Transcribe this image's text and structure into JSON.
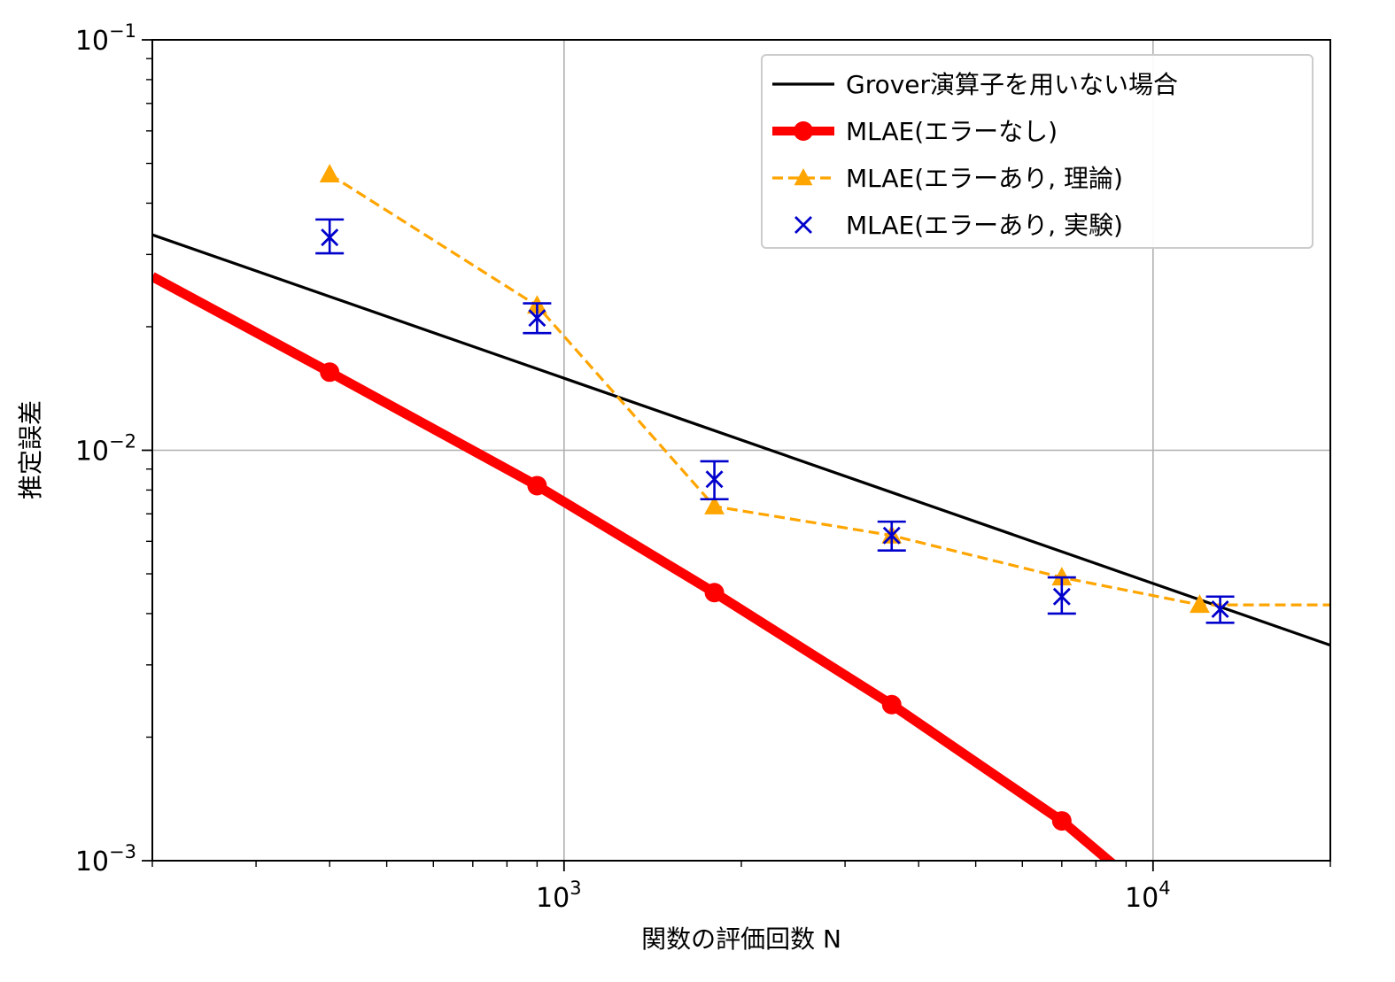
{
  "chart_data": {
    "type": "line",
    "xscale": "log",
    "yscale": "log",
    "xlim": [
      200,
      20000
    ],
    "ylim": [
      0.001,
      0.1
    ],
    "xlabel": "関数の評価回数 N",
    "ylabel": "推定誤差",
    "x_ticks": [
      {
        "value": 1000,
        "base": "10",
        "exp": "3"
      },
      {
        "value": 10000,
        "base": "10",
        "exp": "4"
      }
    ],
    "y_ticks": [
      {
        "value": 0.001,
        "base": "10",
        "exp": "−3"
      },
      {
        "value": 0.01,
        "base": "10",
        "exp": "−2"
      },
      {
        "value": 0.1,
        "base": "10",
        "exp": "−1"
      }
    ],
    "grid": true,
    "legend_position": "top-right",
    "series": [
      {
        "name": "Grover演算子を用いない場合",
        "style": "line",
        "color": "#000000",
        "x": [
          200,
          20000
        ],
        "y": [
          0.0335,
          0.00335
        ]
      },
      {
        "name": "MLAE(エラーなし)",
        "style": "line-circle",
        "color": "#ff0000",
        "x": [
          200,
          400,
          900,
          1800,
          3600,
          7000,
          12000
        ],
        "y": [
          0.0265,
          0.0155,
          0.0082,
          0.0045,
          0.0024,
          0.00125,
          0.00065
        ]
      },
      {
        "name": "MLAE(エラーあり, 理論)",
        "style": "dashed-triangle",
        "color": "#ffa500",
        "x": [
          400,
          900,
          1800,
          3600,
          7000,
          12000,
          20000
        ],
        "y": [
          0.047,
          0.0225,
          0.0073,
          0.0062,
          0.0049,
          0.0042,
          0.0042
        ]
      },
      {
        "name": "MLAE(エラーあり, 実験)",
        "style": "x-errorbar",
        "color": "#0000cc",
        "x": [
          400,
          900,
          1800,
          3600,
          7000,
          13000
        ],
        "y": [
          0.033,
          0.021,
          0.0085,
          0.0062,
          0.0044,
          0.0041
        ],
        "yerr_low": [
          0.0028,
          0.0017,
          0.0009,
          0.0005,
          0.0004,
          0.0003
        ],
        "yerr_high": [
          0.0035,
          0.0018,
          0.0009,
          0.0005,
          0.0005,
          0.0003
        ]
      }
    ]
  }
}
